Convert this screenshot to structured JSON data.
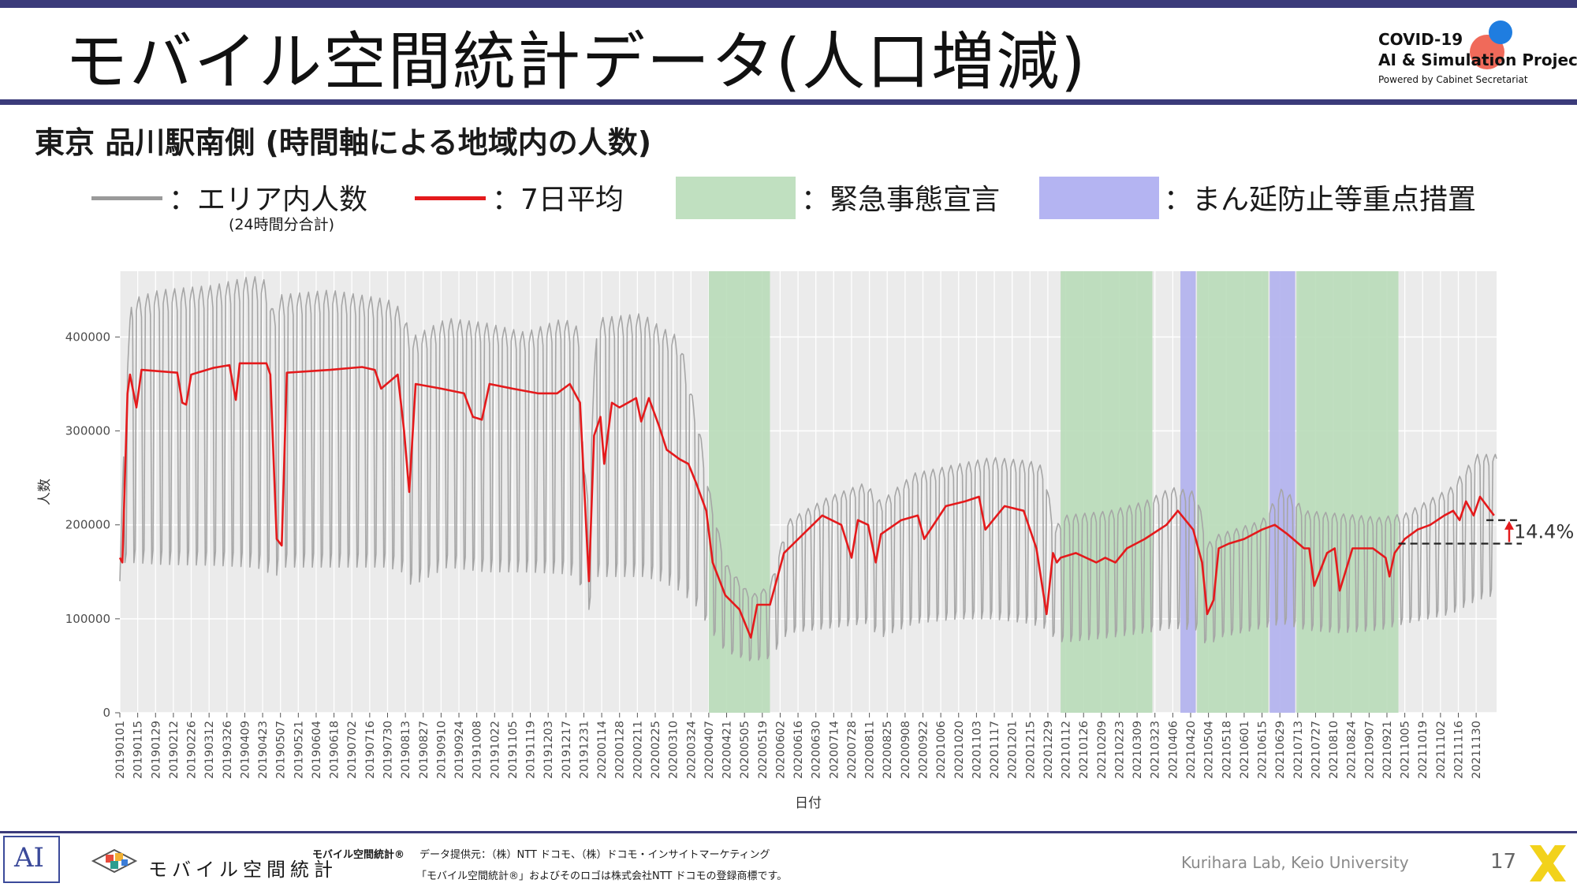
{
  "slide": {
    "title": "モバイル空間統計データ(人口増減)",
    "subtitle": "東京 品川駅南側 (時間軸による地域内の人数)",
    "page_number": "17"
  },
  "project": {
    "line1": "COVID-19",
    "line2": "AI & Simulation Project",
    "line3": "Powered by Cabinet Secretariat",
    "dot_colors": [
      "#f06a5a",
      "#1f7de0"
    ]
  },
  "legend": {
    "area_label": "：エリア内人数",
    "area_sub": "(24時間分合計)",
    "avg_label": "：7日平均",
    "emergency_label": "：緊急事態宣言",
    "priority_label": "：まん延防止等重点措置"
  },
  "colors": {
    "frame": "#3b3b7a",
    "daily": "#a6a6a6",
    "avg": "#e41a1c",
    "emergency": "#b9dcb9",
    "priority": "#b4b4ee",
    "panel": "#ebebeb"
  },
  "chart_data": {
    "type": "line",
    "xlabel": "日付",
    "ylabel": "人数",
    "ylim": [
      0,
      470000
    ],
    "yticks": [
      0,
      100000,
      200000,
      300000,
      400000
    ],
    "ytick_labels": [
      "0",
      "100000",
      "200000",
      "300000",
      "400000"
    ],
    "x_range": [
      "2019-01-01",
      "2021-12-16"
    ],
    "grid": true,
    "xtick_dates": [
      "2019-01-01",
      "2019-01-15",
      "2019-01-29",
      "2019-02-12",
      "2019-02-26",
      "2019-03-12",
      "2019-03-26",
      "2019-04-09",
      "2019-04-23",
      "2019-05-07",
      "2019-05-21",
      "2019-06-04",
      "2019-06-18",
      "2019-07-02",
      "2019-07-16",
      "2019-07-30",
      "2019-08-13",
      "2019-08-27",
      "2019-09-10",
      "2019-09-24",
      "2019-10-08",
      "2019-10-22",
      "2019-11-05",
      "2019-11-19",
      "2019-12-03",
      "2019-12-17",
      "2019-12-31",
      "2020-01-14",
      "2020-01-28",
      "2020-02-11",
      "2020-02-25",
      "2020-03-10",
      "2020-03-24",
      "2020-04-07",
      "2020-04-21",
      "2020-05-05",
      "2020-05-19",
      "2020-06-02",
      "2020-06-16",
      "2020-06-30",
      "2020-07-14",
      "2020-07-28",
      "2020-08-11",
      "2020-08-25",
      "2020-09-08",
      "2020-09-22",
      "2020-10-06",
      "2020-10-20",
      "2020-11-03",
      "2020-11-17",
      "2020-12-01",
      "2020-12-15",
      "2020-12-29",
      "2021-01-12",
      "2021-01-26",
      "2021-02-09",
      "2021-02-23",
      "2021-03-09",
      "2021-03-23",
      "2021-04-06",
      "2021-04-20",
      "2021-05-04",
      "2021-05-18",
      "2021-06-01",
      "2021-06-15",
      "2021-06-29",
      "2021-07-13",
      "2021-07-27",
      "2021-08-10",
      "2021-08-24",
      "2021-09-07",
      "2021-09-21",
      "2021-10-05",
      "2021-10-19",
      "2021-11-02",
      "2021-11-16",
      "2021-11-30"
    ],
    "xtick_labels": [
      "20190101",
      "20190115",
      "20190129",
      "20190212",
      "20190226",
      "20190312",
      "20190326",
      "20190409",
      "20190423",
      "20190507",
      "20190521",
      "20190604",
      "20190618",
      "20190702",
      "20190716",
      "20190730",
      "20190813",
      "20190827",
      "20190910",
      "20190924",
      "20191008",
      "20191022",
      "20191105",
      "20191119",
      "20191203",
      "20191217",
      "20191231",
      "20200114",
      "20200128",
      "20200211",
      "20200225",
      "20200310",
      "20200324",
      "20200407",
      "20200421",
      "20200505",
      "20200519",
      "20200602",
      "20200616",
      "20200630",
      "20200714",
      "20200728",
      "20200811",
      "20200825",
      "20200908",
      "20200922",
      "20201006",
      "20201020",
      "20201103",
      "20201117",
      "20201201",
      "20201215",
      "20201229",
      "20210112",
      "20210126",
      "20210209",
      "20210223",
      "20210309",
      "20210323",
      "20210406",
      "20210420",
      "20210504",
      "20210518",
      "20210601",
      "20210615",
      "20210629",
      "20210713",
      "20210727",
      "20210810",
      "20210824",
      "20210907",
      "20210921",
      "20211005",
      "20211019",
      "20211102",
      "20211116",
      "20211130"
    ],
    "emergency_periods": [
      [
        "2020-04-07",
        "2020-05-25"
      ],
      [
        "2021-01-08",
        "2021-03-21"
      ],
      [
        "2021-04-25",
        "2021-06-20"
      ],
      [
        "2021-07-12",
        "2021-09-30"
      ]
    ],
    "priority_periods": [
      [
        "2021-04-12",
        "2021-04-24"
      ],
      [
        "2021-06-21",
        "2021-07-11"
      ]
    ],
    "series": [
      {
        "name": "エリア内人数",
        "kind": "daily_envelope",
        "x": [
          "2019-01-01",
          "2019-01-05",
          "2019-01-10",
          "2019-02-01",
          "2019-03-15",
          "2019-04-15",
          "2019-04-26",
          "2019-05-01",
          "2019-05-08",
          "2019-06-15",
          "2019-07-30",
          "2019-08-10",
          "2019-08-18",
          "2019-09-15",
          "2019-10-15",
          "2019-11-15",
          "2019-12-15",
          "2019-12-27",
          "2019-12-31",
          "2020-01-04",
          "2020-01-10",
          "2020-02-15",
          "2020-03-01",
          "2020-03-15",
          "2020-03-31",
          "2020-04-07",
          "2020-04-20",
          "2020-05-10",
          "2020-05-25",
          "2020-06-08",
          "2020-07-10",
          "2020-08-08",
          "2020-08-20",
          "2020-09-15",
          "2020-10-20",
          "2020-11-15",
          "2020-12-15",
          "2020-12-26",
          "2021-01-03",
          "2021-01-10",
          "2021-02-15",
          "2021-03-15",
          "2021-04-05",
          "2021-04-25",
          "2021-05-03",
          "2021-05-12",
          "2021-06-15",
          "2021-07-01",
          "2021-07-20",
          "2021-08-15",
          "2021-09-15",
          "2021-10-05",
          "2021-11-10",
          "2021-12-01",
          "2021-12-14"
        ],
        "high": [
          140000,
          330000,
          440000,
          450000,
          455000,
          465000,
          460000,
          430000,
          445000,
          450000,
          440000,
          430000,
          400000,
          420000,
          415000,
          405000,
          420000,
          410000,
          260000,
          230000,
          420000,
          425000,
          410000,
          400000,
          300000,
          240000,
          160000,
          125000,
          135000,
          205000,
          230000,
          245000,
          225000,
          255000,
          265000,
          272000,
          268000,
          262000,
          195000,
          210000,
          215000,
          225000,
          240000,
          235000,
          180000,
          190000,
          205000,
          240000,
          215000,
          212000,
          208000,
          212000,
          240000,
          275000,
          275000
        ],
        "low": [
          140000,
          160000,
          160000,
          158000,
          157000,
          155000,
          152000,
          140000,
          155000,
          155000,
          155000,
          150000,
          135000,
          155000,
          150000,
          150000,
          148000,
          145000,
          110000,
          110000,
          145000,
          145000,
          140000,
          130000,
          110000,
          90000,
          65000,
          55000,
          58000,
          85000,
          90000,
          95000,
          80000,
          95000,
          100000,
          100000,
          95000,
          90000,
          80000,
          75000,
          80000,
          85000,
          90000,
          88000,
          70000,
          80000,
          90000,
          95000,
          88000,
          85000,
          88000,
          95000,
          105000,
          120000,
          125000
        ]
      },
      {
        "name": "7日平均",
        "x": [
          "2019-01-01",
          "2019-01-03",
          "2019-01-07",
          "2019-01-09",
          "2019-01-14",
          "2019-01-18",
          "2019-02-15",
          "2019-02-19",
          "2019-02-22",
          "2019-02-26",
          "2019-03-15",
          "2019-03-28",
          "2019-04-02",
          "2019-04-05",
          "2019-04-26",
          "2019-04-29",
          "2019-05-04",
          "2019-05-08",
          "2019-05-12",
          "2019-06-15",
          "2019-07-10",
          "2019-07-20",
          "2019-07-25",
          "2019-08-07",
          "2019-08-12",
          "2019-08-16",
          "2019-08-21",
          "2019-09-10",
          "2019-09-28",
          "2019-10-05",
          "2019-10-12",
          "2019-10-18",
          "2019-11-05",
          "2019-11-25",
          "2019-12-10",
          "2019-12-20",
          "2019-12-28",
          "2020-01-01",
          "2020-01-04",
          "2020-01-08",
          "2020-01-13",
          "2020-01-16",
          "2020-01-22",
          "2020-01-28",
          "2020-02-10",
          "2020-02-14",
          "2020-02-20",
          "2020-02-28",
          "2020-03-05",
          "2020-03-10",
          "2020-03-15",
          "2020-03-22",
          "2020-03-28",
          "2020-04-05",
          "2020-04-10",
          "2020-04-20",
          "2020-05-01",
          "2020-05-07",
          "2020-05-10",
          "2020-05-15",
          "2020-05-25",
          "2020-06-05",
          "2020-06-20",
          "2020-07-05",
          "2020-07-20",
          "2020-07-28",
          "2020-08-02",
          "2020-08-10",
          "2020-08-16",
          "2020-08-20",
          "2020-09-05",
          "2020-09-18",
          "2020-09-23",
          "2020-10-10",
          "2020-10-25",
          "2020-11-05",
          "2020-11-10",
          "2020-11-25",
          "2020-12-10",
          "2020-12-20",
          "2020-12-28",
          "2021-01-02",
          "2021-01-05",
          "2021-01-08",
          "2021-01-20",
          "2021-02-05",
          "2021-02-12",
          "2021-02-20",
          "2021-03-01",
          "2021-03-15",
          "2021-04-01",
          "2021-04-10",
          "2021-04-22",
          "2021-04-29",
          "2021-05-03",
          "2021-05-08",
          "2021-05-12",
          "2021-05-20",
          "2021-06-01",
          "2021-06-15",
          "2021-06-25",
          "2021-07-05",
          "2021-07-18",
          "2021-07-22",
          "2021-07-26",
          "2021-08-05",
          "2021-08-11",
          "2021-08-15",
          "2021-08-25",
          "2021-09-10",
          "2021-09-20",
          "2021-09-23",
          "2021-09-27",
          "2021-10-05",
          "2021-10-15",
          "2021-10-25",
          "2021-11-05",
          "2021-11-12",
          "2021-11-17",
          "2021-11-22",
          "2021-11-28",
          "2021-12-03",
          "2021-12-14"
        ],
        "values": [
          165000,
          160000,
          340000,
          360000,
          325000,
          365000,
          362000,
          330000,
          328000,
          360000,
          367000,
          370000,
          333000,
          372000,
          372000,
          360000,
          185000,
          178000,
          362000,
          365000,
          368000,
          365000,
          345000,
          360000,
          300000,
          235000,
          350000,
          345000,
          340000,
          315000,
          312000,
          350000,
          345000,
          340000,
          340000,
          350000,
          330000,
          220000,
          140000,
          295000,
          315000,
          265000,
          330000,
          325000,
          335000,
          310000,
          335000,
          305000,
          280000,
          275000,
          270000,
          265000,
          245000,
          215000,
          160000,
          125000,
          110000,
          90000,
          80000,
          115000,
          115000,
          170000,
          190000,
          210000,
          200000,
          165000,
          205000,
          200000,
          160000,
          190000,
          205000,
          210000,
          185000,
          220000,
          225000,
          230000,
          195000,
          220000,
          215000,
          175000,
          105000,
          170000,
          160000,
          165000,
          170000,
          160000,
          165000,
          160000,
          175000,
          185000,
          200000,
          215000,
          195000,
          160000,
          105000,
          120000,
          175000,
          180000,
          185000,
          195000,
          200000,
          190000,
          175000,
          175000,
          135000,
          170000,
          175000,
          130000,
          175000,
          175000,
          165000,
          145000,
          170000,
          185000,
          195000,
          200000,
          210000,
          215000,
          205000,
          225000,
          210000,
          230000,
          210000
        ]
      }
    ],
    "annotation": {
      "text": "14.4%",
      "from_value": 180000,
      "to_value": 205000
    }
  }
}
